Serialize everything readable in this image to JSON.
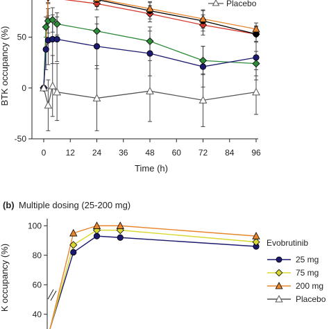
{
  "chart_data": [
    {
      "panel_label": "",
      "title": "",
      "type": "line",
      "xlabel": "Time (h)",
      "ylabel": "BTK occupancy (%)",
      "x_ticks": [
        "0",
        "12",
        "24",
        "36",
        "48",
        "60",
        "72",
        "84",
        "96"
      ],
      "y_ticks": [
        "-50",
        "0",
        "50"
      ],
      "xlim": [
        0,
        96
      ],
      "ylim": [
        -50,
        90
      ],
      "legend_entries_visible": [
        "Placebo"
      ],
      "series": [
        {
          "name": "",
          "color": "#d6372c",
          "marker": "diamond",
          "x": [
            0,
            2,
            24,
            48,
            72,
            96
          ],
          "y": [
            0,
            89,
            83,
            73,
            62,
            53
          ],
          "error": [
            0,
            6,
            6,
            8,
            10,
            8
          ]
        },
        {
          "name": "",
          "color": "#000000",
          "marker": "circle",
          "x": [
            0,
            2,
            24,
            48,
            72,
            96
          ],
          "y": [
            0,
            90,
            87,
            76,
            66,
            53
          ],
          "error": [
            0,
            6,
            7,
            8,
            10,
            7
          ]
        },
        {
          "name": "",
          "color": "#e8862d",
          "marker": "triangle",
          "x": [
            0,
            2,
            24,
            48,
            72,
            96
          ],
          "y": [
            0,
            90,
            88,
            78,
            68,
            58
          ],
          "error": [
            0,
            6,
            7,
            7,
            9,
            6
          ]
        },
        {
          "name": "",
          "color": "#2e8b3a",
          "marker": "diamond",
          "x": [
            0,
            1,
            2,
            4,
            6,
            24,
            48,
            72,
            96
          ],
          "y": [
            0,
            60,
            66,
            67,
            63,
            56,
            46,
            27,
            24
          ],
          "error": [
            0,
            10,
            12,
            12,
            11,
            14,
            14,
            14,
            12
          ]
        },
        {
          "name": "",
          "color": "#1c1a6e",
          "marker": "circle",
          "x": [
            0,
            1,
            2,
            4,
            6,
            24,
            48,
            72,
            96
          ],
          "y": [
            0,
            38,
            47,
            48,
            48,
            41,
            34,
            21,
            30
          ],
          "error": [
            0,
            20,
            24,
            24,
            22,
            22,
            22,
            20,
            22
          ]
        },
        {
          "name": "Placebo",
          "color": "#555555",
          "marker": "open-triangle",
          "x": [
            0,
            2,
            4,
            6,
            24,
            48,
            72,
            96
          ],
          "y": [
            0,
            -17,
            2,
            -4,
            -10,
            -3,
            -12,
            -4
          ],
          "error": [
            0,
            25,
            30,
            28,
            32,
            30,
            26,
            22
          ]
        }
      ]
    },
    {
      "panel_label": "(b)",
      "title": "Multiple dosing (25-200 mg)",
      "type": "line",
      "xlabel": "",
      "ylabel": "K occupancy (%)",
      "y_ticks": [
        "40",
        "60",
        "80",
        "100"
      ],
      "ylim": [
        30,
        102
      ],
      "legend_title": "Evobrutinib",
      "legend_entries": [
        {
          "label": "25 mg",
          "color": "#1c1a6e",
          "marker": "circle"
        },
        {
          "label": "75 mg",
          "color": "#d9d832",
          "marker": "diamond"
        },
        {
          "label": "200 mg",
          "color": "#e8862d",
          "marker": "triangle"
        },
        {
          "label": "Placebo",
          "color": "#555555",
          "marker": "open-triangle"
        }
      ],
      "series": [
        {
          "name": "25 mg",
          "color": "#1c1a6e",
          "marker": "circle",
          "x": [
            0.0,
            1.0,
            2.0,
            3.0,
            8.8
          ],
          "y": [
            30,
            82,
            93,
            92,
            86
          ]
        },
        {
          "name": "75 mg",
          "color": "#d9d832",
          "marker": "diamond",
          "x": [
            0.0,
            1.0,
            2.0,
            3.0,
            8.8
          ],
          "y": [
            30,
            87,
            97,
            97,
            89
          ]
        },
        {
          "name": "200 mg",
          "color": "#e8862d",
          "marker": "triangle",
          "x": [
            0.0,
            1.0,
            2.0,
            3.0,
            8.8
          ],
          "y": [
            30,
            95,
            100,
            100,
            93
          ]
        }
      ]
    }
  ]
}
